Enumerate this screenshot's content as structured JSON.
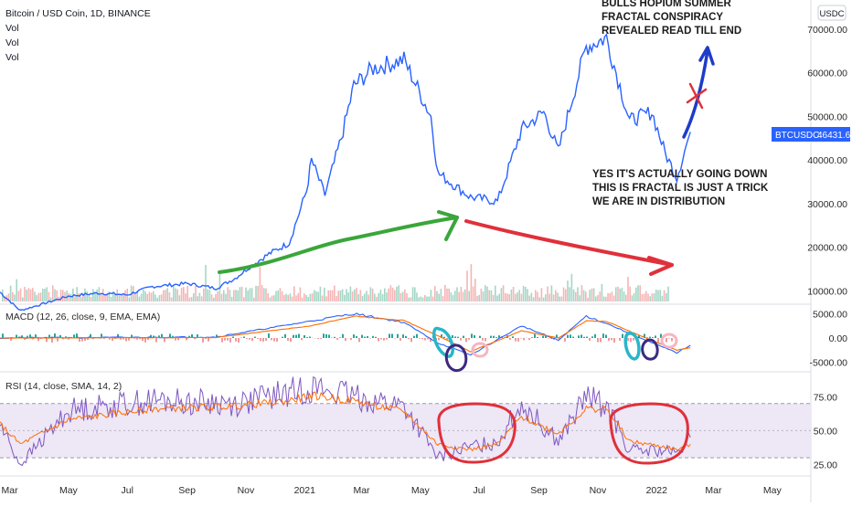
{
  "header": {
    "symbol_title": "Bitcoin / USD Coin, 1D, BINANCE",
    "vol_labels": [
      "Vol",
      "Vol",
      "Vol"
    ],
    "currency_badge": "USDC"
  },
  "price_tag": {
    "ticker": "BTCUSDC",
    "value": "46431.60"
  },
  "annotations": {
    "top_note": [
      "BULLS HOPIUM SUMMER",
      "FRACTAL CONSPIRACY",
      "REVEALED READ TILL END"
    ],
    "mid_note": [
      "YES IT'S ACTUALLY GOING DOWN",
      "THIS IS FRACTAL IS JUST A TRICK",
      "WE ARE IN DISTRIBUTION"
    ]
  },
  "panels": {
    "macd_title": "MACD (12, 26, close, 9, EMA, EMA)",
    "rsi_title": "RSI (14, close, SMA, 14, 2)"
  },
  "colors": {
    "price_line": "#2962ff",
    "macd_line": "#2962ff",
    "signal_line": "#ff6d00",
    "rsi_line": "#7e57c2",
    "rsi_band": "#ede7f6",
    "vol_up": "#a5d6c6",
    "vol_down": "#f5b5b5",
    "green_arrow": "#3aa63a",
    "red_arrow": "#e0303a",
    "blue_arrow": "#1e3cc8",
    "red_cross": "#e0303a",
    "red_ellipse": "#e0303a",
    "teal_loop": "#29b6c9",
    "purple_loop": "#3d2a80",
    "pink_circle": "#f4b6c2",
    "tag_bg": "#2962ff"
  },
  "chart_data": [
    {
      "type": "line",
      "title": "Bitcoin / USD Coin, 1D, BINANCE",
      "series_label": "BTCUSDC",
      "ylim": [
        8000,
        75000
      ],
      "y_ticks": [
        "70000.00",
        "60000.00",
        "50000.00",
        "40000.00",
        "30000.00",
        "20000.00",
        "10000.00"
      ],
      "x_ticks": [
        "Mar",
        "May",
        "Jul",
        "Sep",
        "Nov",
        "2021",
        "Mar",
        "May",
        "Jul",
        "Sep",
        "Nov",
        "2022",
        "Mar",
        "May"
      ],
      "x_range": [
        "2020-02-20",
        "2022-06-10"
      ],
      "last_value": 46431.6,
      "series": [
        {
          "name": "BTCUSDC",
          "x": [
            "2020-02-20",
            "2020-03-12",
            "2020-04-01",
            "2020-05-01",
            "2020-06-01",
            "2020-07-01",
            "2020-07-27",
            "2020-09-01",
            "2020-10-01",
            "2020-10-21",
            "2020-11-05",
            "2020-11-25",
            "2020-12-16",
            "2021-01-03",
            "2021-01-08",
            "2021-01-22",
            "2021-02-08",
            "2021-02-21",
            "2021-03-13",
            "2021-04-14",
            "2021-05-12",
            "2021-05-19",
            "2021-06-22",
            "2021-07-20",
            "2021-08-14",
            "2021-09-06",
            "2021-09-21",
            "2021-10-20",
            "2021-11-10",
            "2021-12-04",
            "2021-12-27",
            "2022-01-10",
            "2022-01-22",
            "2022-02-05"
          ],
          "values": [
            9700,
            5500,
            6800,
            8800,
            9500,
            9100,
            11000,
            11700,
            10600,
            12900,
            15500,
            18500,
            21000,
            33000,
            40000,
            32000,
            45000,
            57000,
            61000,
            63000,
            50000,
            37000,
            31500,
            30500,
            47000,
            51000,
            42000,
            66000,
            68000,
            49000,
            51000,
            41500,
            36000,
            46431.6
          ]
        }
      ]
    },
    {
      "type": "line",
      "title": "MACD (12, 26, close, 9, EMA, EMA)",
      "ylim": [
        -6000,
        6000
      ],
      "y_ticks": [
        "5000.00",
        "0.00",
        "-5000.00"
      ],
      "series": [
        {
          "name": "MACD",
          "x": [
            "2020-02-20",
            "2020-10-01",
            "2021-01-08",
            "2021-02-21",
            "2021-04-14",
            "2021-05-19",
            "2021-06-22",
            "2021-08-14",
            "2021-09-21",
            "2021-10-20",
            "2021-11-10",
            "2021-12-27",
            "2022-01-22",
            "2022-02-05"
          ],
          "values": [
            0,
            200,
            3500,
            5000,
            3200,
            -1000,
            -3500,
            2500,
            -500,
            4500,
            3000,
            -1000,
            -3000,
            -1500
          ]
        },
        {
          "name": "Signal",
          "x": [
            "2020-02-20",
            "2020-10-01",
            "2021-01-08",
            "2021-02-21",
            "2021-04-14",
            "2021-05-19",
            "2021-06-22",
            "2021-08-14",
            "2021-09-21",
            "2021-10-20",
            "2021-11-10",
            "2021-12-27",
            "2022-01-22",
            "2022-02-05"
          ],
          "values": [
            0,
            100,
            2500,
            4500,
            3600,
            500,
            -2800,
            1500,
            0,
            3500,
            3400,
            -500,
            -2500,
            -2000
          ]
        }
      ]
    },
    {
      "type": "line",
      "title": "RSI (14, close, SMA, 14, 2)",
      "ylim": [
        20,
        90
      ],
      "y_ticks": [
        "75.00",
        "50.00",
        "25.00"
      ],
      "band": [
        30,
        70
      ],
      "series": [
        {
          "name": "RSI",
          "x": [
            "2020-02-20",
            "2020-03-12",
            "2020-05-01",
            "2020-07-27",
            "2020-10-21",
            "2020-12-16",
            "2021-01-08",
            "2021-02-21",
            "2021-04-14",
            "2021-05-19",
            "2021-06-22",
            "2021-07-20",
            "2021-08-14",
            "2021-09-21",
            "2021-10-20",
            "2021-11-10",
            "2021-12-04",
            "2022-01-10",
            "2022-01-22",
            "2022-02-05"
          ],
          "values": [
            55,
            25,
            65,
            72,
            70,
            78,
            82,
            75,
            68,
            30,
            38,
            42,
            70,
            42,
            75,
            68,
            35,
            35,
            32,
            45
          ]
        },
        {
          "name": "RSI-based MA",
          "x": [
            "2020-02-20",
            "2020-03-12",
            "2020-05-01",
            "2020-07-27",
            "2020-10-21",
            "2020-12-16",
            "2021-01-08",
            "2021-02-21",
            "2021-04-14",
            "2021-05-19",
            "2021-06-22",
            "2021-07-20",
            "2021-08-14",
            "2021-09-21",
            "2021-10-20",
            "2021-11-10",
            "2021-12-04",
            "2022-01-10",
            "2022-01-22",
            "2022-02-05"
          ],
          "values": [
            55,
            40,
            58,
            66,
            68,
            72,
            76,
            72,
            64,
            40,
            36,
            40,
            60,
            48,
            66,
            66,
            42,
            38,
            36,
            40
          ]
        }
      ]
    }
  ]
}
